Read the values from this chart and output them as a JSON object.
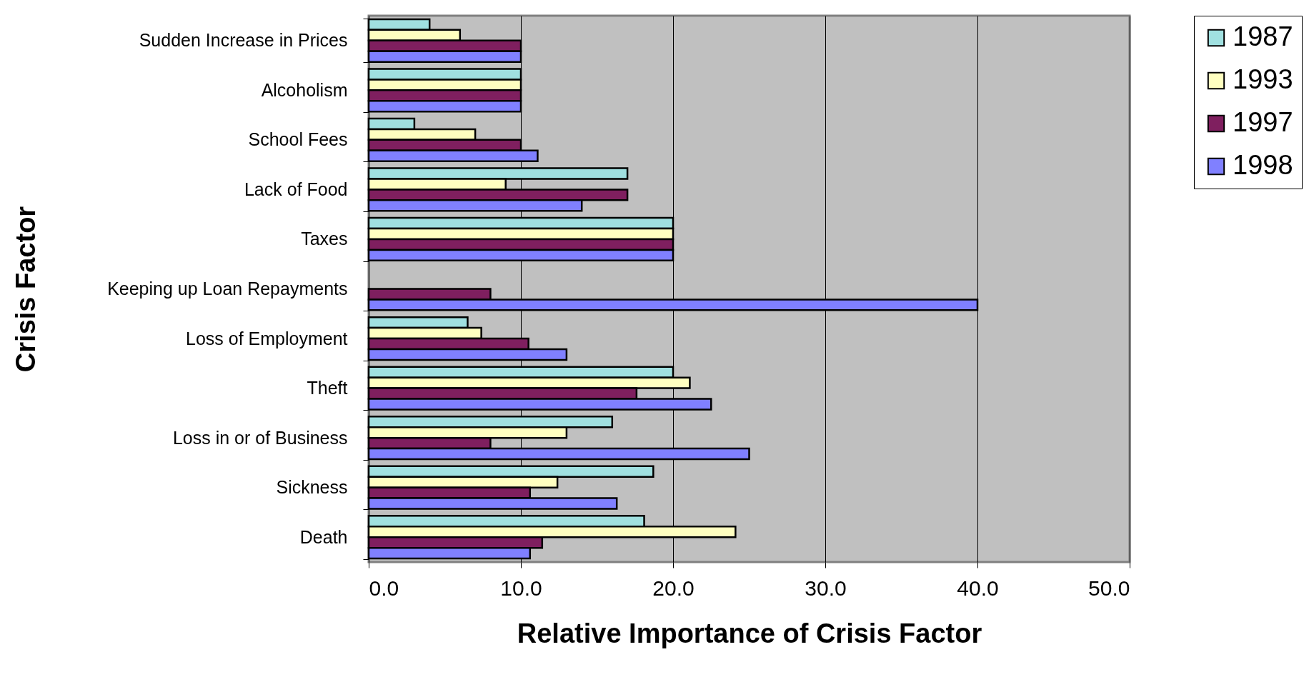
{
  "chart_data": {
    "type": "bar",
    "orientation": "horizontal",
    "xlabel": "Relative Importance of Crisis Factor",
    "ylabel": "Crisis Factor",
    "categories": [
      "Sudden Increase in Prices",
      "Alcoholism",
      "School Fees",
      "Lack of Food",
      "Taxes",
      "Keeping up Loan Repayments",
      "Loss of Employment",
      "Theft",
      "Loss in or of Business",
      "Sickness",
      "Death"
    ],
    "series": [
      {
        "name": "1987",
        "color": "#a0e0e0",
        "values": [
          4,
          10,
          3,
          17,
          20,
          null,
          6.5,
          20,
          16,
          18.7,
          18.1
        ]
      },
      {
        "name": "1993",
        "color": "#ffffc0",
        "values": [
          6,
          10,
          7,
          9,
          20,
          null,
          7.4,
          21.1,
          13,
          12.4,
          24.1
        ]
      },
      {
        "name": "1997",
        "color": "#7f1f5f",
        "values": [
          10,
          10,
          10,
          17,
          20,
          8,
          10.5,
          17.6,
          8,
          10.6,
          11.4
        ]
      },
      {
        "name": "1998",
        "color": "#8080ff",
        "values": [
          10,
          10,
          11.1,
          14,
          20,
          40,
          13,
          22.5,
          25,
          16.3,
          10.6
        ]
      }
    ],
    "xlim": [
      0,
      50
    ],
    "xticks": [
      {
        "value": 0,
        "label": "0.0"
      },
      {
        "value": 10,
        "label": "10.0"
      },
      {
        "value": 20,
        "label": "20.0"
      },
      {
        "value": 30,
        "label": "30.0"
      },
      {
        "value": 40,
        "label": "40.0"
      },
      {
        "value": 50,
        "label": "50.0"
      }
    ],
    "grid": "x",
    "legend": "right"
  }
}
